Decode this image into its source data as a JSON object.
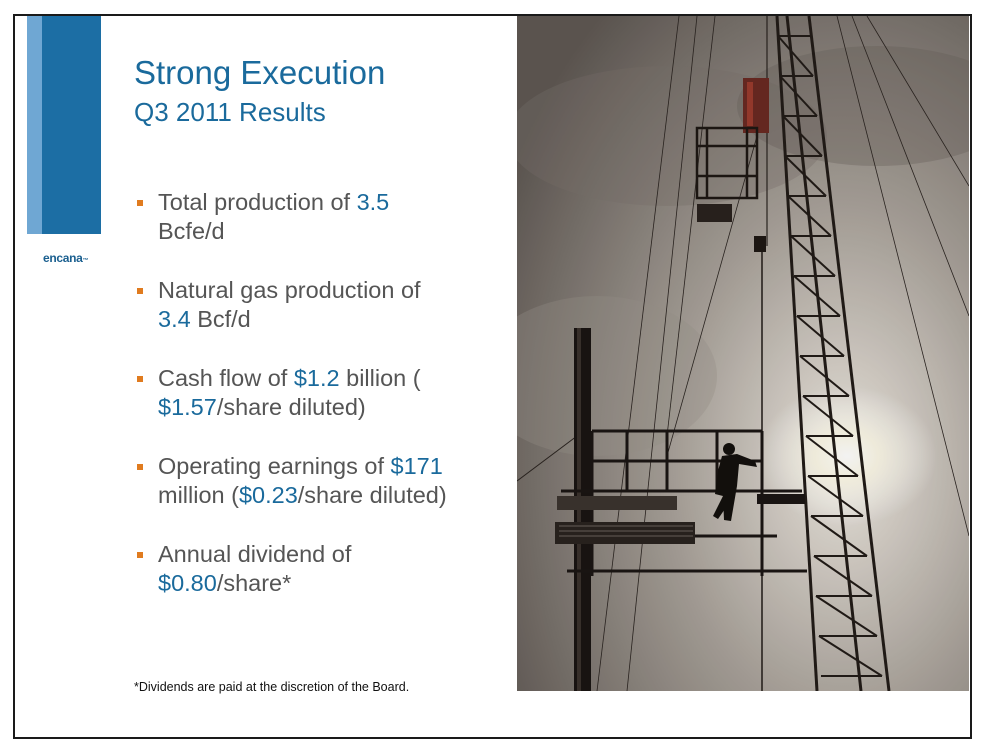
{
  "logo": {
    "text": "encana",
    "mark": "™"
  },
  "title": "Strong Execution",
  "subtitle": "Q3 2011 Results",
  "bullets": [
    {
      "parts": [
        {
          "t": "Total production of ",
          "hl": false
        },
        {
          "t": "3.5",
          "hl": true
        },
        {
          "t": " Bcfe/d",
          "hl": false
        }
      ]
    },
    {
      "parts": [
        {
          "t": "Natural gas production of ",
          "hl": false
        },
        {
          "t": "3.4",
          "hl": true
        },
        {
          "t": " Bcf/d",
          "hl": false
        }
      ]
    },
    {
      "parts": [
        {
          "t": "Cash flow of ",
          "hl": false
        },
        {
          "t": "$1.2",
          "hl": true
        },
        {
          "t": " billion (",
          "hl": false
        },
        {
          "t": "$1.57",
          "hl": true
        },
        {
          "t": "/share diluted)",
          "hl": false
        }
      ]
    },
    {
      "parts": [
        {
          "t": "Operating earnings of ",
          "hl": false
        },
        {
          "t": "$171",
          "hl": true
        },
        {
          "t": " million (",
          "hl": false
        },
        {
          "t": "$0.23",
          "hl": true
        },
        {
          "t": "/share diluted)",
          "hl": false
        }
      ]
    },
    {
      "parts": [
        {
          "t": "Annual dividend of ",
          "hl": false
        },
        {
          "t": "$0.80",
          "hl": true
        },
        {
          "t": "/share*",
          "hl": false
        }
      ]
    }
  ],
  "footnote": "*Dividends are paid at the discretion of the Board.",
  "colors": {
    "accent": "#1a6a9c",
    "bar_light": "#6fa7d3",
    "bar_dark": "#1c6ea4",
    "bullet_marker": "#e07b1f",
    "body_text": "#555555"
  }
}
